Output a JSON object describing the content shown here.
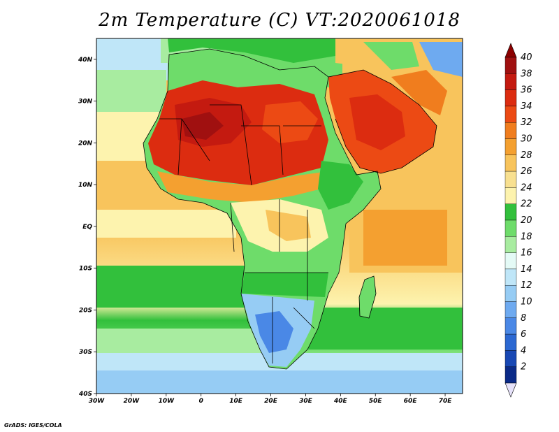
{
  "title": "2m Temperature (C) VT:2020061018",
  "credit": "GrADS: IGES/COLA",
  "map": {
    "projection": "lat-lon",
    "lon_range": [
      -30,
      75
    ],
    "lat_range": [
      -40,
      45
    ],
    "lon_ticks": [
      "30W",
      "20W",
      "10W",
      "0",
      "10E",
      "20E",
      "30E",
      "40E",
      "50E",
      "60E",
      "70E"
    ],
    "lat_ticks": [
      "40N",
      "30N",
      "20N",
      "10N",
      "EQ",
      "10S",
      "20S",
      "30S",
      "40S"
    ],
    "regions_shown": "Africa, Middle East, Atlantic and Indian Oceans"
  },
  "colorbar": {
    "labels": [
      "40",
      "38",
      "36",
      "34",
      "32",
      "30",
      "28",
      "26",
      "24",
      "22",
      "20",
      "18",
      "16",
      "14",
      "12",
      "10",
      "8",
      "6",
      "4",
      "2"
    ],
    "colors": [
      "#a01010",
      "#c41a10",
      "#dc2c10",
      "#ec4a14",
      "#f07d1e",
      "#f4a030",
      "#f8c45c",
      "#f8e090",
      "#fdf3ae",
      "#32c03c",
      "#6edc6a",
      "#a8eca0",
      "#e4faf6",
      "#bfe6f8",
      "#96ccf4",
      "#6eaaf0",
      "#4a88e6",
      "#2b68d2",
      "#1848b4",
      "#0a2a88"
    ],
    "triangle_top": "#8c0000",
    "triangle_bottom": "#e6e2fa"
  }
}
